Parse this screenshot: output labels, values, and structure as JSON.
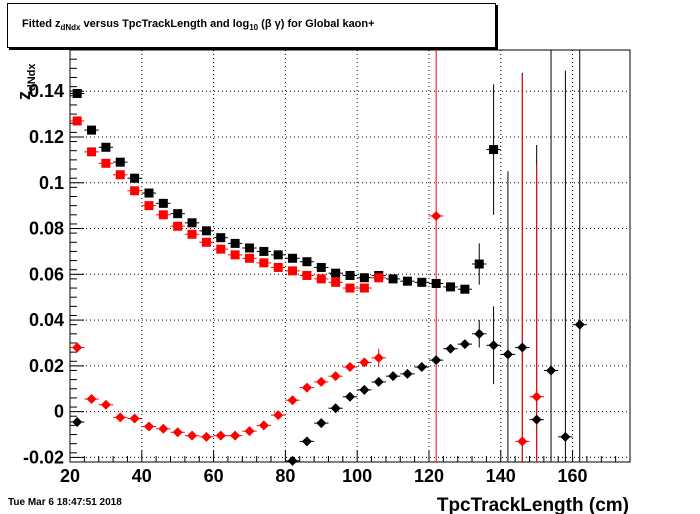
{
  "title": {
    "prefix": "Fitted  z",
    "sub1": "dNdx",
    "middle": "  versus TpcTrackLength and log",
    "sub2": "10",
    "suffix": " (β γ) for Global kaon+"
  },
  "timestamp": "Tue Mar  6 18:47:51 2018",
  "colors": {
    "black_series": "#000000",
    "red_series": "#ff0000",
    "grid": "#000000"
  },
  "chart_data": {
    "type": "scatter",
    "xlabel": "TpcTrackLength (cm)",
    "ylabel": "z",
    "ylabel_sub": "dNdx",
    "xlim": [
      20,
      176
    ],
    "ylim": [
      -0.022,
      0.158
    ],
    "x_ticks": [
      20,
      40,
      60,
      80,
      100,
      120,
      140,
      160
    ],
    "y_ticks": [
      -0.02,
      0,
      0.02,
      0.04,
      0.06,
      0.08,
      0.1,
      0.12,
      0.14
    ],
    "x_tick_labels": [
      "20",
      "40",
      "60",
      "80",
      "100",
      "120",
      "140",
      "160"
    ],
    "y_tick_labels": [
      "-0.02",
      "0",
      "0.02",
      "0.04",
      "0.06",
      "0.08",
      "0.1",
      "0.12",
      "0.14"
    ],
    "grid": true,
    "series": [
      {
        "marker": "square",
        "color": "#000000",
        "points": [
          {
            "x": 22,
            "y": 0.139
          },
          {
            "x": 26,
            "y": 0.123
          },
          {
            "x": 30,
            "y": 0.1155
          },
          {
            "x": 34,
            "y": 0.109
          },
          {
            "x": 38,
            "y": 0.102
          },
          {
            "x": 42,
            "y": 0.0955
          },
          {
            "x": 46,
            "y": 0.091
          },
          {
            "x": 50,
            "y": 0.0865
          },
          {
            "x": 54,
            "y": 0.0825
          },
          {
            "x": 58,
            "y": 0.079
          },
          {
            "x": 62,
            "y": 0.076
          },
          {
            "x": 66,
            "y": 0.0735
          },
          {
            "x": 70,
            "y": 0.0715
          },
          {
            "x": 74,
            "y": 0.07
          },
          {
            "x": 78,
            "y": 0.0685
          },
          {
            "x": 82,
            "y": 0.067
          },
          {
            "x": 86,
            "y": 0.0655
          },
          {
            "x": 90,
            "y": 0.063
          },
          {
            "x": 94,
            "y": 0.0605
          },
          {
            "x": 98,
            "y": 0.0595
          },
          {
            "x": 102,
            "y": 0.0585
          },
          {
            "x": 106,
            "y": 0.0595
          },
          {
            "x": 110,
            "y": 0.058
          },
          {
            "x": 114,
            "y": 0.057
          },
          {
            "x": 118,
            "y": 0.0565
          },
          {
            "x": 122,
            "y": 0.056
          },
          {
            "x": 126,
            "y": 0.0545
          },
          {
            "x": 130,
            "y": 0.0535
          },
          {
            "x": 134,
            "y": 0.0645,
            "err": 0.009
          },
          {
            "x": 138,
            "y": 0.1145,
            "err": 0.0285
          }
        ]
      },
      {
        "marker": "square",
        "color": "#ff0000",
        "points": [
          {
            "x": 22,
            "y": 0.127
          },
          {
            "x": 26,
            "y": 0.1135
          },
          {
            "x": 30,
            "y": 0.1085
          },
          {
            "x": 34,
            "y": 0.1035
          },
          {
            "x": 38,
            "y": 0.0965
          },
          {
            "x": 42,
            "y": 0.09
          },
          {
            "x": 46,
            "y": 0.086
          },
          {
            "x": 50,
            "y": 0.081
          },
          {
            "x": 54,
            "y": 0.0775
          },
          {
            "x": 58,
            "y": 0.074
          },
          {
            "x": 62,
            "y": 0.071
          },
          {
            "x": 66,
            "y": 0.0685
          },
          {
            "x": 70,
            "y": 0.067
          },
          {
            "x": 74,
            "y": 0.065
          },
          {
            "x": 78,
            "y": 0.063
          },
          {
            "x": 82,
            "y": 0.0615
          },
          {
            "x": 86,
            "y": 0.0595
          },
          {
            "x": 90,
            "y": 0.058
          },
          {
            "x": 94,
            "y": 0.0565
          },
          {
            "x": 98,
            "y": 0.054
          },
          {
            "x": 102,
            "y": 0.054
          },
          {
            "x": 106,
            "y": 0.0585
          }
        ]
      },
      {
        "marker": "diamond",
        "color": "#000000",
        "points": [
          {
            "x": 22,
            "y": -0.0045
          },
          {
            "x": 82,
            "y": -0.0215
          },
          {
            "x": 86,
            "y": -0.013
          },
          {
            "x": 90,
            "y": -0.005
          },
          {
            "x": 94,
            "y": 0.0015
          },
          {
            "x": 98,
            "y": 0.0065
          },
          {
            "x": 102,
            "y": 0.0095
          },
          {
            "x": 106,
            "y": 0.013
          },
          {
            "x": 110,
            "y": 0.0155
          },
          {
            "x": 114,
            "y": 0.0165
          },
          {
            "x": 118,
            "y": 0.0195
          },
          {
            "x": 122,
            "y": 0.0225
          },
          {
            "x": 126,
            "y": 0.0275
          },
          {
            "x": 130,
            "y": 0.0295
          },
          {
            "x": 134,
            "y": 0.034,
            "err": 0.006
          },
          {
            "x": 138,
            "y": 0.029,
            "err": 0.017
          },
          {
            "x": 142,
            "y": 0.025,
            "err": 0.08
          },
          {
            "x": 146,
            "y": 0.028,
            "err": 0.12
          },
          {
            "x": 150,
            "y": -0.0035,
            "err": 0.12
          },
          {
            "x": 154,
            "y": 0.018,
            "err": 0.16
          },
          {
            "x": 158,
            "y": -0.011,
            "err": 0.16
          },
          {
            "x": 162,
            "y": 0.038,
            "err": 0.16
          }
        ]
      },
      {
        "marker": "diamond",
        "color": "#ff0000",
        "points": [
          {
            "x": 22,
            "y": 0.028
          },
          {
            "x": 26,
            "y": 0.0055
          },
          {
            "x": 30,
            "y": 0.003
          },
          {
            "x": 34,
            "y": -0.0025
          },
          {
            "x": 38,
            "y": -0.003
          },
          {
            "x": 42,
            "y": -0.0065
          },
          {
            "x": 46,
            "y": -0.0075
          },
          {
            "x": 50,
            "y": -0.009
          },
          {
            "x": 54,
            "y": -0.0105
          },
          {
            "x": 58,
            "y": -0.011
          },
          {
            "x": 62,
            "y": -0.0105
          },
          {
            "x": 66,
            "y": -0.0105
          },
          {
            "x": 70,
            "y": -0.0085
          },
          {
            "x": 74,
            "y": -0.006
          },
          {
            "x": 78,
            "y": -0.0015
          },
          {
            "x": 82,
            "y": 0.005
          },
          {
            "x": 86,
            "y": 0.0105
          },
          {
            "x": 90,
            "y": 0.013
          },
          {
            "x": 94,
            "y": 0.0155
          },
          {
            "x": 98,
            "y": 0.0195
          },
          {
            "x": 102,
            "y": 0.0215
          },
          {
            "x": 106,
            "y": 0.0235,
            "err": 0.004
          },
          {
            "x": 122,
            "y": 0.0855,
            "err": 0.16
          },
          {
            "x": 146,
            "y": -0.013,
            "err": 0.16
          },
          {
            "x": 150,
            "y": 0.0065,
            "err": 0.101
          }
        ]
      }
    ]
  }
}
